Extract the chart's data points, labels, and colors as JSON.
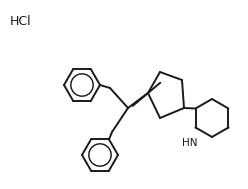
{
  "background_color": "#ffffff",
  "hcl_label": "HCl",
  "line_color": "#1a1a1a",
  "line_width": 1.4,
  "hcl_fontsize": 9,
  "nh_fontsize": 7.5,
  "benzene_r": 18,
  "dioxolane_r": 20,
  "piperidine_r": 18
}
